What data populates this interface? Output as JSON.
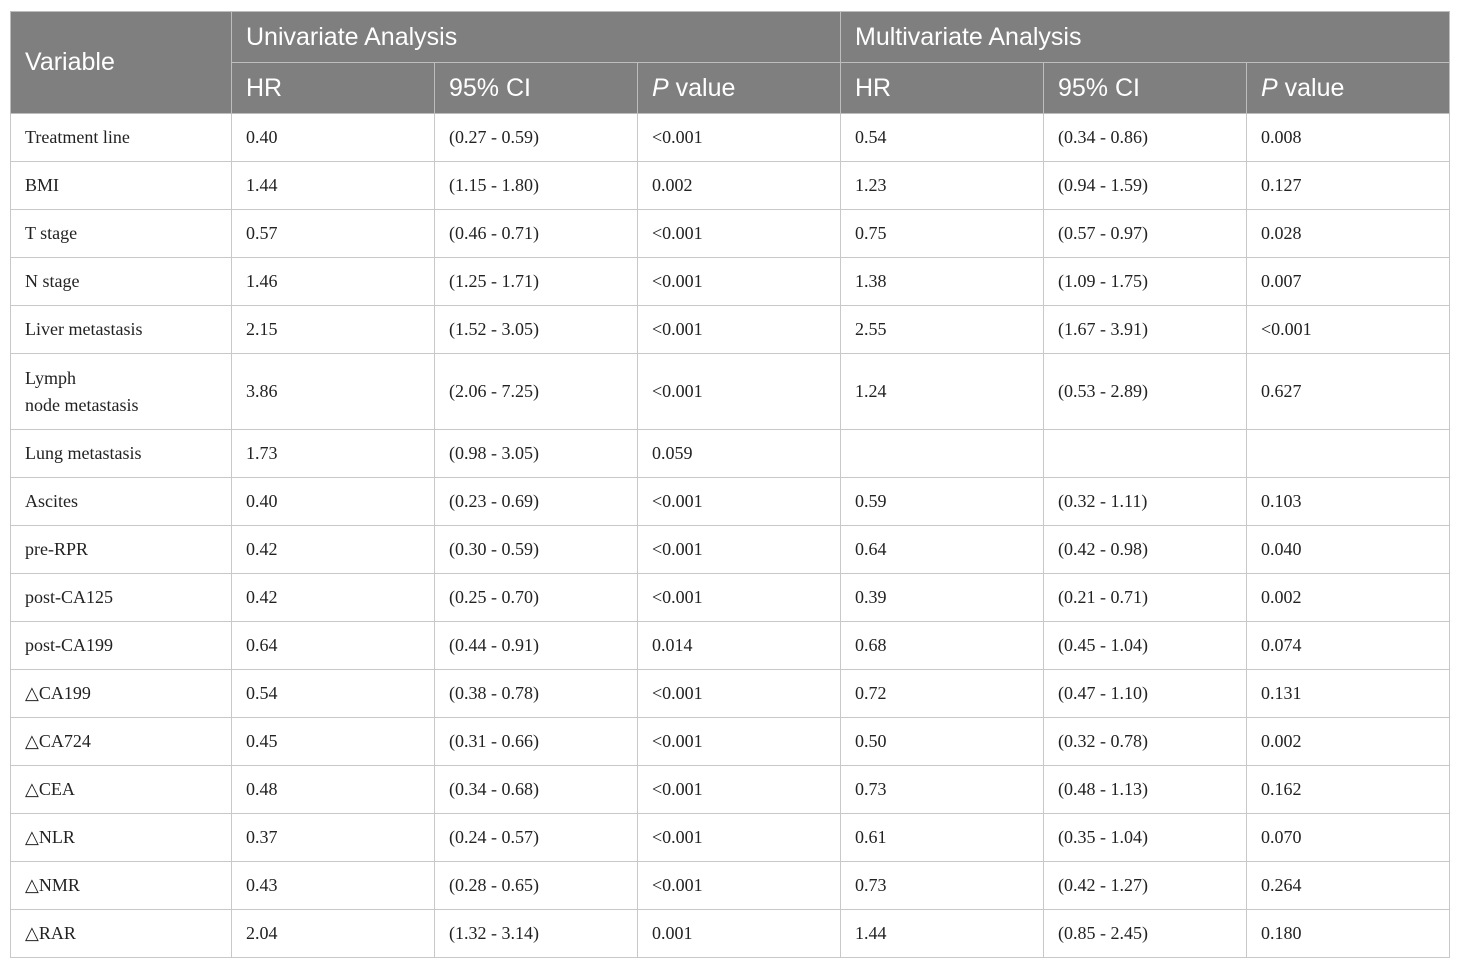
{
  "header": {
    "variable": "Variable",
    "groups": [
      "Univariate Analysis",
      "Multivariate Analysis"
    ],
    "uni": {
      "hr": "HR",
      "ci": "95% CI",
      "p_italic": "P",
      "p_rest": " value"
    },
    "multi": {
      "hr": "HR",
      "ci": "95% CI",
      "p_italic": "P",
      "p_rest": " value"
    }
  },
  "rows": [
    {
      "variable": "Treatment line",
      "uni_hr": "0.40",
      "uni_ci": "(0.27 - 0.59)",
      "uni_p": "<0.001",
      "multi_hr": "0.54",
      "multi_ci": "(0.34 - 0.86)",
      "multi_p": "0.008"
    },
    {
      "variable": "BMI",
      "uni_hr": "1.44",
      "uni_ci": "(1.15 - 1.80)",
      "uni_p": "0.002",
      "multi_hr": "1.23",
      "multi_ci": "(0.94 - 1.59)",
      "multi_p": "0.127"
    },
    {
      "variable": "T stage",
      "uni_hr": "0.57",
      "uni_ci": "(0.46 - 0.71)",
      "uni_p": "<0.001",
      "multi_hr": "0.75",
      "multi_ci": "(0.57 - 0.97)",
      "multi_p": "0.028"
    },
    {
      "variable": "N stage",
      "uni_hr": "1.46",
      "uni_ci": "(1.25 - 1.71)",
      "uni_p": "<0.001",
      "multi_hr": "1.38",
      "multi_ci": "(1.09 - 1.75)",
      "multi_p": "0.007"
    },
    {
      "variable": "Liver metastasis",
      "uni_hr": "2.15",
      "uni_ci": "(1.52 - 3.05)",
      "uni_p": "<0.001",
      "multi_hr": "2.55",
      "multi_ci": "(1.67 - 3.91)",
      "multi_p": "<0.001"
    },
    {
      "variable_line1": "Lymph",
      "variable_line2": "node metastasis",
      "uni_hr": "3.86",
      "uni_ci": "(2.06 - 7.25)",
      "uni_p": "<0.001",
      "multi_hr": "1.24",
      "multi_ci": "(0.53 - 2.89)",
      "multi_p": "0.627"
    },
    {
      "variable": "Lung metastasis",
      "uni_hr": "1.73",
      "uni_ci": "(0.98 - 3.05)",
      "uni_p": "0.059",
      "multi_hr": "",
      "multi_ci": "",
      "multi_p": ""
    },
    {
      "variable": "Ascites",
      "uni_hr": "0.40",
      "uni_ci": "(0.23 - 0.69)",
      "uni_p": "<0.001",
      "multi_hr": "0.59",
      "multi_ci": "(0.32 - 1.11)",
      "multi_p": "0.103"
    },
    {
      "variable": "pre-RPR",
      "uni_hr": "0.42",
      "uni_ci": "(0.30 - 0.59)",
      "uni_p": "<0.001",
      "multi_hr": "0.64",
      "multi_ci": "(0.42 - 0.98)",
      "multi_p": "0.040"
    },
    {
      "variable": "post-CA125",
      "uni_hr": "0.42",
      "uni_ci": "(0.25 - 0.70)",
      "uni_p": "<0.001",
      "multi_hr": "0.39",
      "multi_ci": "(0.21 - 0.71)",
      "multi_p": "0.002"
    },
    {
      "variable": "post-CA199",
      "uni_hr": "0.64",
      "uni_ci": "(0.44 - 0.91)",
      "uni_p": "0.014",
      "multi_hr": "0.68",
      "multi_ci": "(0.45 - 1.04)",
      "multi_p": "0.074"
    },
    {
      "variable": "△CA199",
      "uni_hr": "0.54",
      "uni_ci": "(0.38 - 0.78)",
      "uni_p": "<0.001",
      "multi_hr": "0.72",
      "multi_ci": "(0.47 - 1.10)",
      "multi_p": "0.131"
    },
    {
      "variable": "△CA724",
      "uni_hr": "0.45",
      "uni_ci": "(0.31 - 0.66)",
      "uni_p": "<0.001",
      "multi_hr": "0.50",
      "multi_ci": "(0.32 - 0.78)",
      "multi_p": "0.002"
    },
    {
      "variable": "△CEA",
      "uni_hr": "0.48",
      "uni_ci": "(0.34 - 0.68)",
      "uni_p": "<0.001",
      "multi_hr": "0.73",
      "multi_ci": "(0.48 - 1.13)",
      "multi_p": "0.162"
    },
    {
      "variable": "△NLR",
      "uni_hr": "0.37",
      "uni_ci": "(0.24 - 0.57)",
      "uni_p": "<0.001",
      "multi_hr": "0.61",
      "multi_ci": "(0.35 - 1.04)",
      "multi_p": "0.070"
    },
    {
      "variable": "△NMR",
      "uni_hr": "0.43",
      "uni_ci": "(0.28 - 0.65)",
      "uni_p": "<0.001",
      "multi_hr": "0.73",
      "multi_ci": "(0.42 - 1.27)",
      "multi_p": "0.264"
    },
    {
      "variable": "△RAR",
      "uni_hr": "2.04",
      "uni_ci": "(1.32 - 3.14)",
      "uni_p": "0.001",
      "multi_hr": "1.44",
      "multi_ci": "(0.85 - 2.45)",
      "multi_p": "0.180"
    }
  ],
  "colors": {
    "header_bg": "#7f7f7f",
    "header_text": "#ffffff",
    "grid": "#c8c8c8",
    "body_text": "#222222"
  }
}
